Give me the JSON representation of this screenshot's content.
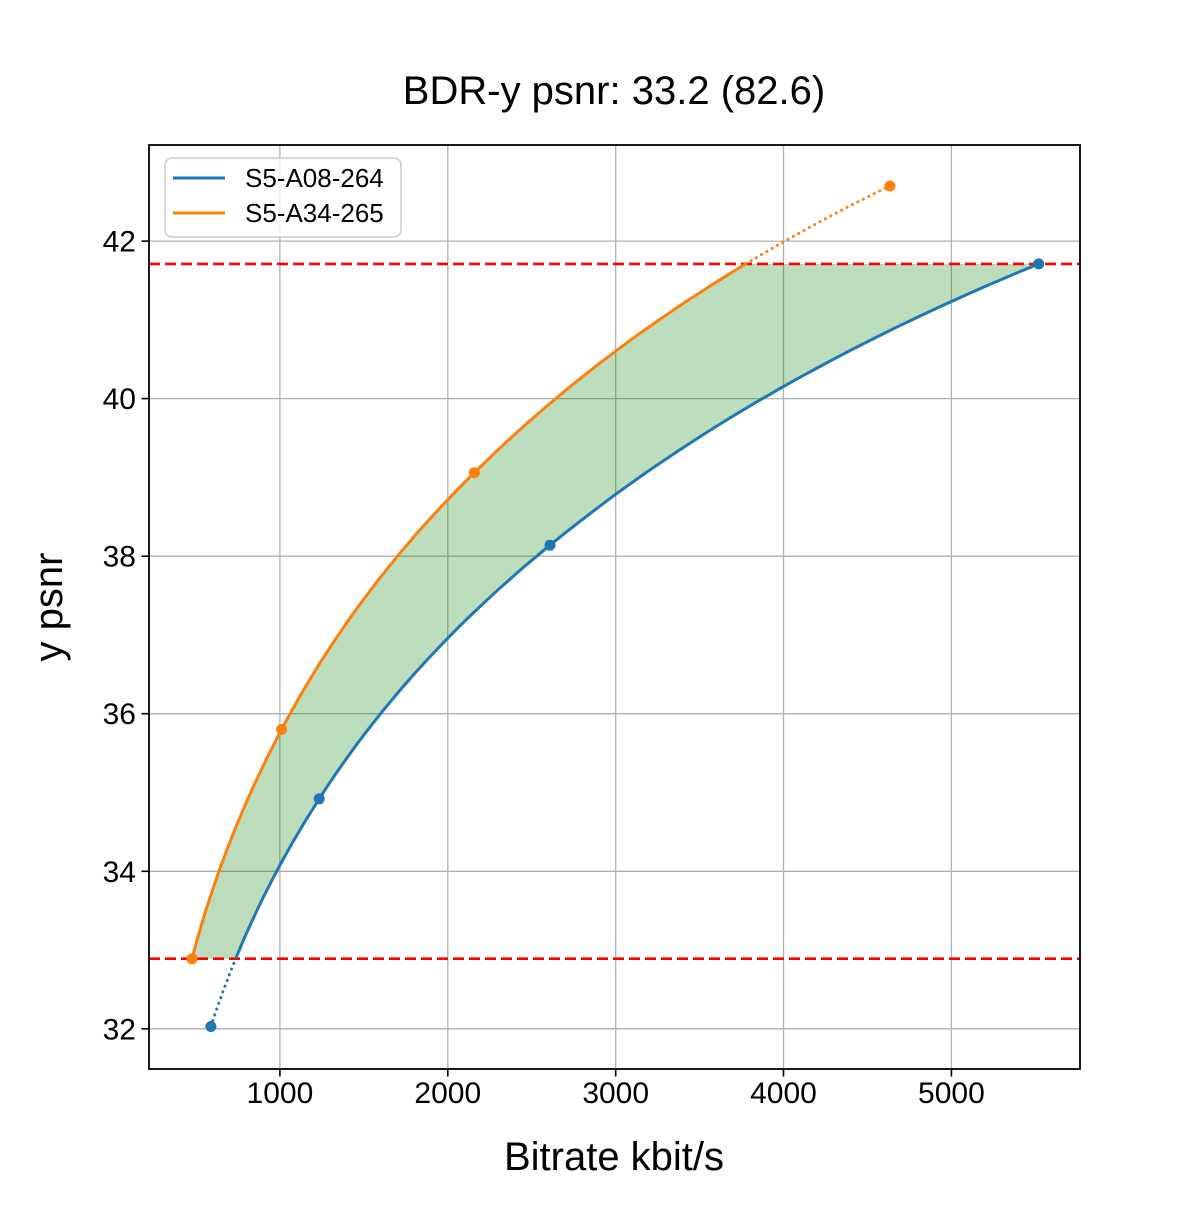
{
  "figure": {
    "title": "BDR-y psnr: 33.2 (82.6)"
  },
  "chart_data": {
    "type": "line",
    "title": "BDR-y psnr: 33.2 (82.6)",
    "xlabel": "Bitrate kbit/s",
    "ylabel": "y psnr",
    "xlim": [
      220,
      5766
    ],
    "ylim": [
      31.49,
      43.22
    ],
    "xticks": [
      1000,
      2000,
      3000,
      4000,
      5000
    ],
    "yticks": [
      32,
      34,
      36,
      38,
      40,
      42
    ],
    "grid": true,
    "grid_color": "#b0b0b0",
    "legend_position": "upper-left",
    "series": [
      {
        "name": "S5-A08-264",
        "color": "#1f77b4",
        "marker": "circle",
        "x": [
          589,
          1234,
          2609,
          5520
        ],
        "y": [
          32.03,
          34.92,
          38.14,
          41.71
        ],
        "dotted_segment": "below-lower-hline"
      },
      {
        "name": "S5-A34-265",
        "color": "#ff7f0e",
        "marker": "circle",
        "x": [
          476,
          1010,
          2158,
          4634
        ],
        "y": [
          32.89,
          35.8,
          39.06,
          42.7
        ],
        "dotted_segment": "above-upper-hline"
      }
    ],
    "hlines": [
      {
        "y": 32.89,
        "color": "#ff0000",
        "style": "dashed"
      },
      {
        "y": 41.71,
        "color": "#ff0000",
        "style": "dashed"
      }
    ],
    "fill_between": {
      "color": "#008000",
      "alpha": 0.26,
      "psnr_range": [
        32.89,
        41.71
      ]
    }
  }
}
